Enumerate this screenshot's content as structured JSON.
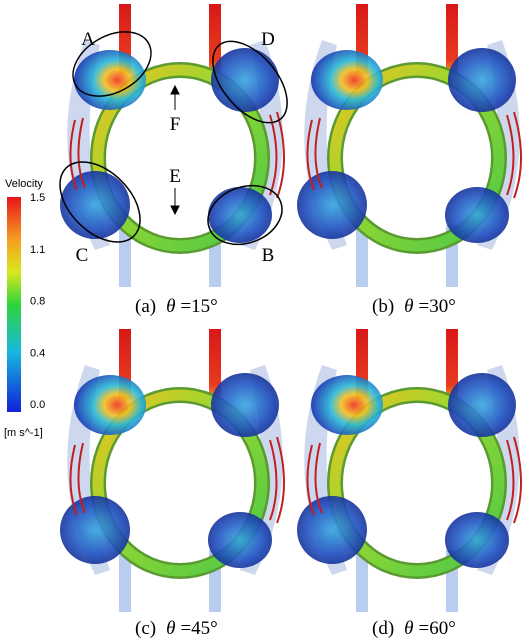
{
  "colorbar": {
    "title": "Velocity",
    "ticks": [
      "1.5",
      "1.1",
      "0.8",
      "0.4",
      "0.0"
    ],
    "unit": "[m s^-1]"
  },
  "annotations": {
    "a": "A",
    "b": "B",
    "c": "C",
    "d": "D",
    "e": "E",
    "f": "F"
  },
  "panels": [
    {
      "label": "(a)",
      "symbol": "θ",
      "angle": "=15°"
    },
    {
      "label": "(b)",
      "symbol": "θ",
      "angle": "=30°"
    },
    {
      "label": "(c)",
      "symbol": "θ",
      "angle": "=45°"
    },
    {
      "label": "(d)",
      "symbol": "θ",
      "angle": "=60°"
    }
  ]
}
